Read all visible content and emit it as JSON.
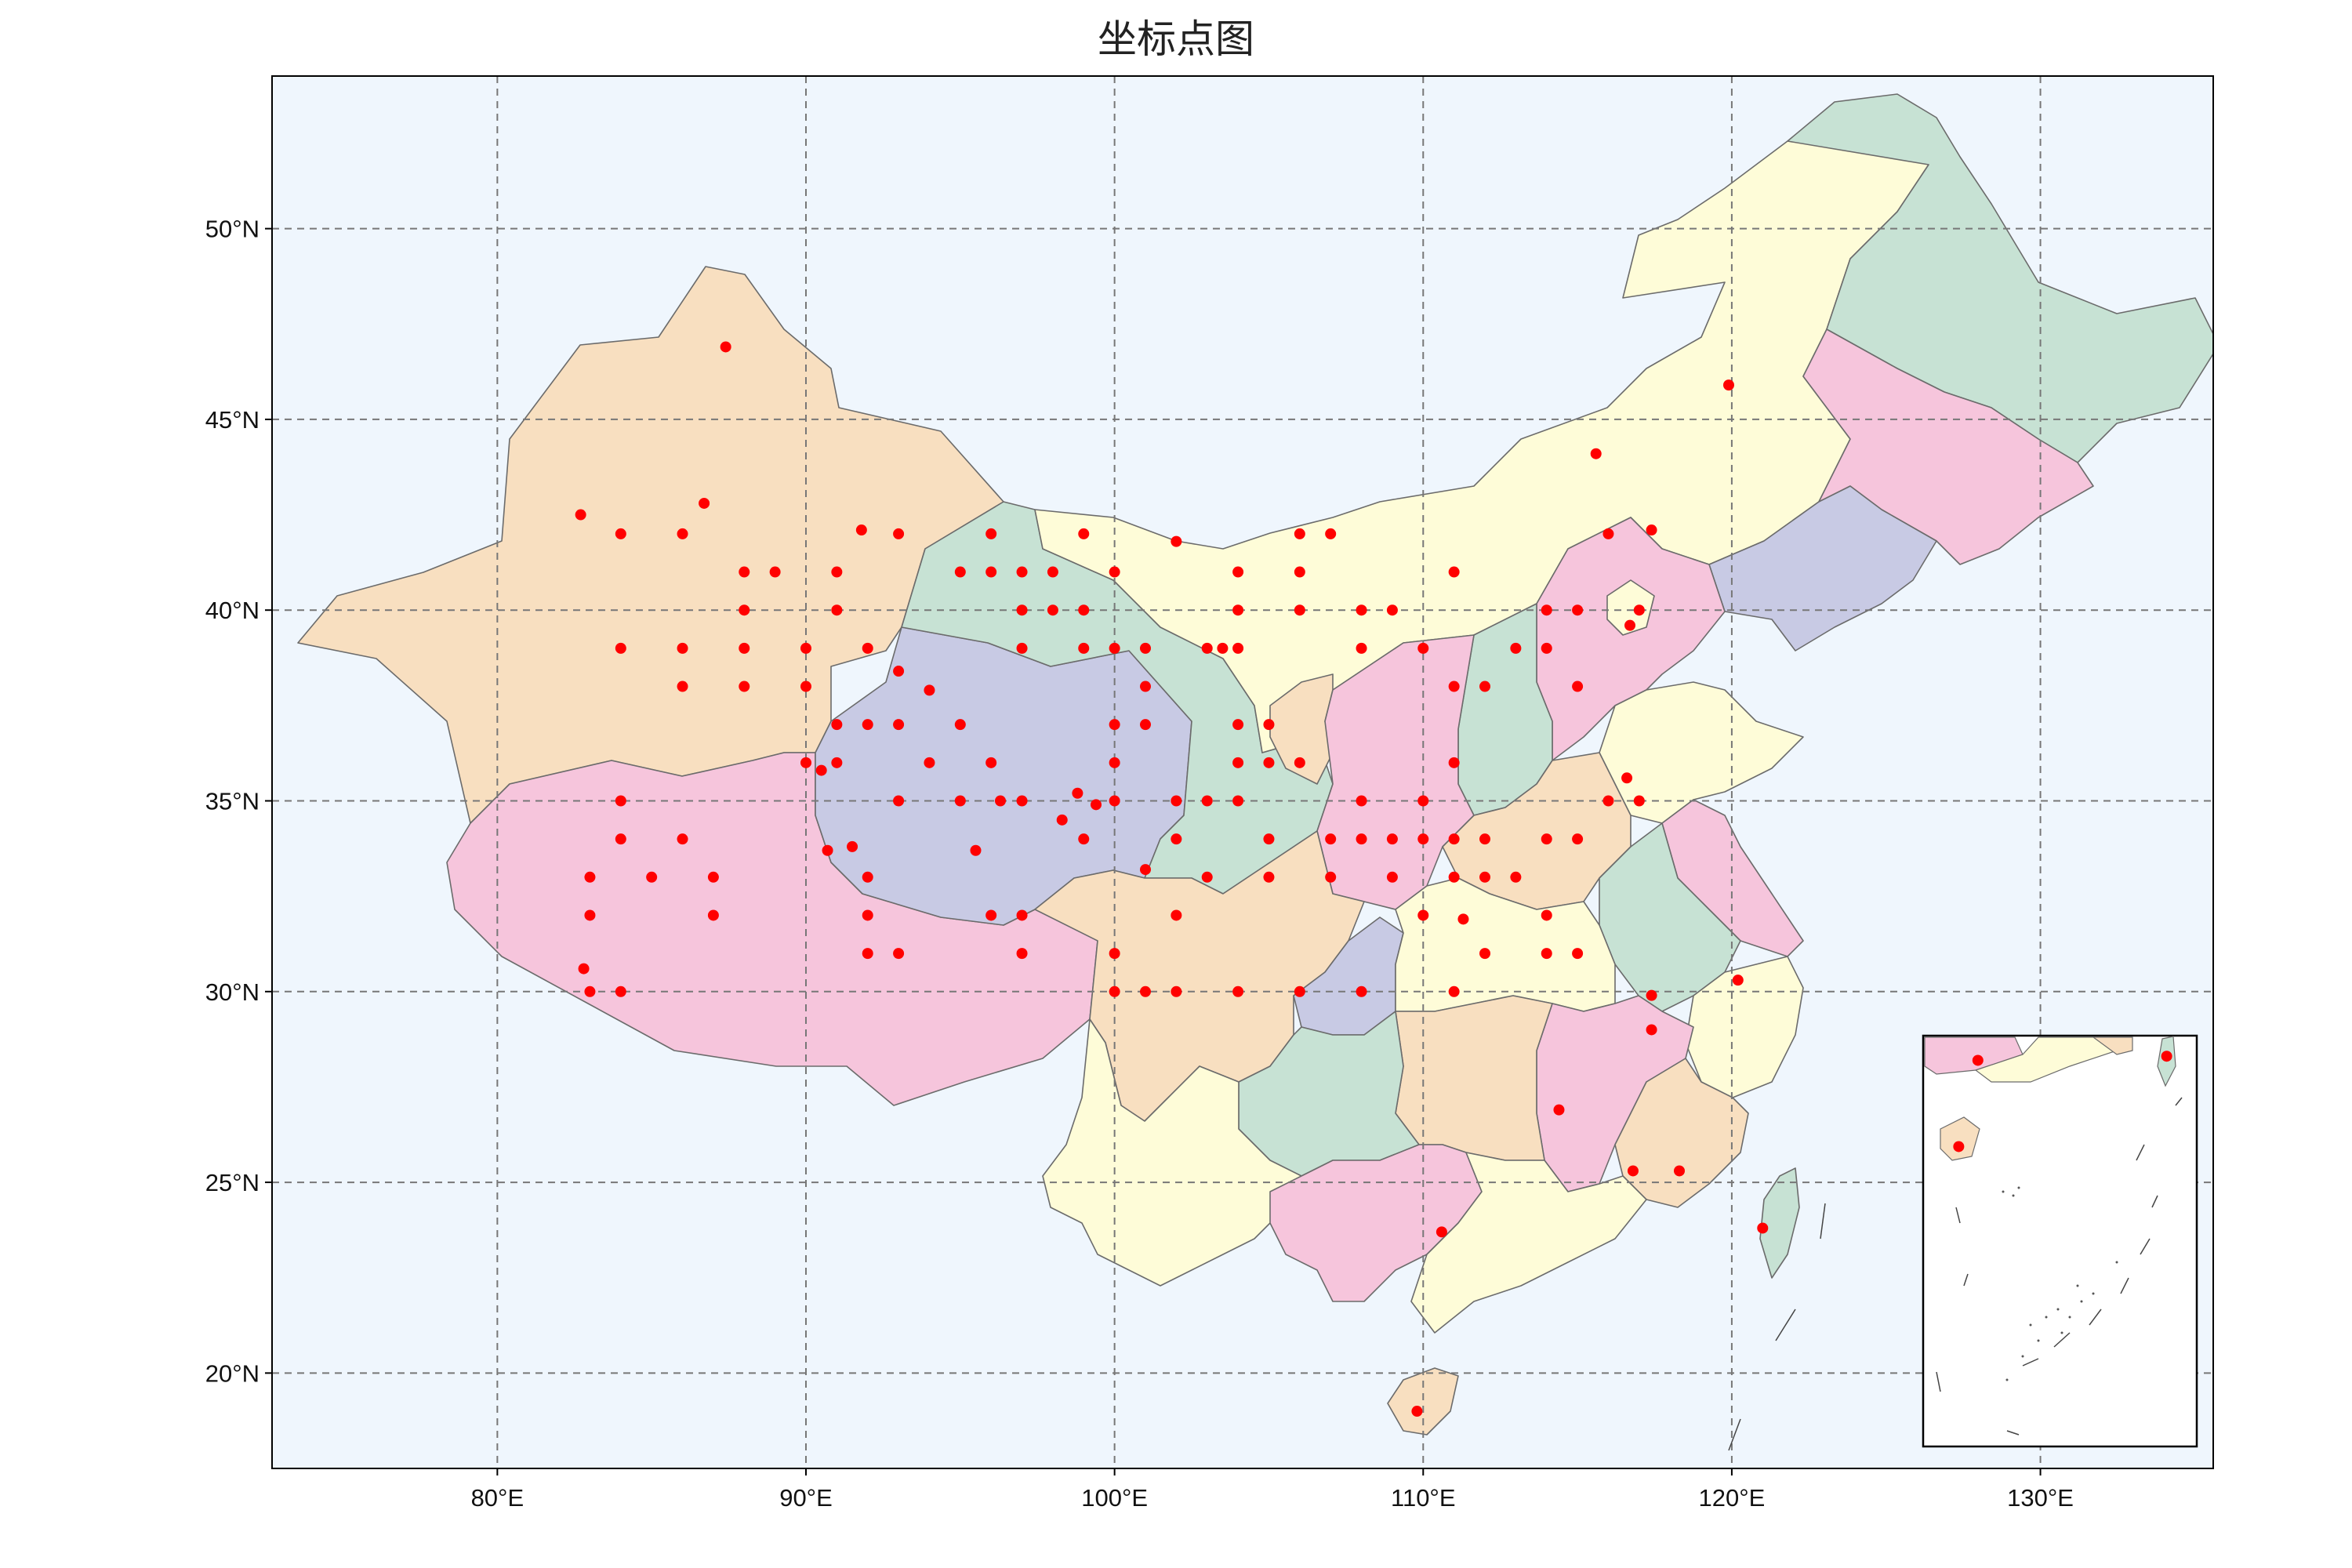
{
  "title": "坐标点图",
  "map": {
    "projection": "equirectangular",
    "lon_range": [
      72.7,
      135.6
    ],
    "lat_range": [
      17.5,
      54.0
    ],
    "grid": "dashed",
    "x_ticks": [
      {
        "v": 80,
        "label": "80°E"
      },
      {
        "v": 90,
        "label": "90°E"
      },
      {
        "v": 100,
        "label": "100°E"
      },
      {
        "v": 110,
        "label": "110°E"
      },
      {
        "v": 120,
        "label": "120°E"
      },
      {
        "v": 130,
        "label": "130°E"
      }
    ],
    "y_ticks": [
      {
        "v": 20,
        "label": "20°N"
      },
      {
        "v": 25,
        "label": "25°N"
      },
      {
        "v": 30,
        "label": "30°N"
      },
      {
        "v": 35,
        "label": "35°N"
      },
      {
        "v": 40,
        "label": "40°N"
      },
      {
        "v": 45,
        "label": "45°N"
      },
      {
        "v": 50,
        "label": "50°N"
      }
    ],
    "colors": {
      "ocean": "#eff6fd",
      "border": "#6b6b6b",
      "points": "#ff0000",
      "peach": "#f8dfc0",
      "pink": "#f6c5dc",
      "green": "#c7e2d4",
      "lavender": "#c8cae4",
      "yellow": "#fefcd8"
    },
    "inset": {
      "description_visible": false
    }
  },
  "points": [
    [
      87.4,
      46.9
    ],
    [
      86.7,
      42.8
    ],
    [
      82.7,
      42.5
    ],
    [
      84.0,
      42.0
    ],
    [
      86.0,
      42.0
    ],
    [
      91.8,
      42.1
    ],
    [
      93.0,
      42.0
    ],
    [
      88.0,
      41.0
    ],
    [
      89.0,
      41.0
    ],
    [
      91.0,
      41.0
    ],
    [
      88.0,
      40.0
    ],
    [
      91.0,
      40.0
    ],
    [
      84.0,
      39.0
    ],
    [
      86.0,
      39.0
    ],
    [
      88.0,
      39.0
    ],
    [
      90.0,
      39.0
    ],
    [
      86.0,
      38.0
    ],
    [
      88.0,
      38.0
    ],
    [
      90.0,
      38.0
    ],
    [
      92.0,
      39.0
    ],
    [
      93.0,
      38.4
    ],
    [
      94.0,
      37.9
    ],
    [
      92.0,
      37.0
    ],
    [
      93.0,
      37.0
    ],
    [
      95.0,
      37.0
    ],
    [
      91.0,
      37.0
    ],
    [
      90.0,
      36.0
    ],
    [
      91.0,
      36.0
    ],
    [
      90.5,
      35.8
    ],
    [
      94.0,
      36.0
    ],
    [
      96.0,
      36.0
    ],
    [
      84.0,
      35.0
    ],
    [
      84.0,
      34.0
    ],
    [
      86.0,
      34.0
    ],
    [
      93.0,
      35.0
    ],
    [
      95.0,
      35.0
    ],
    [
      96.3,
      35.0
    ],
    [
      97.0,
      35.0
    ],
    [
      98.8,
      35.2
    ],
    [
      99.4,
      34.9
    ],
    [
      100.0,
      35.0
    ],
    [
      98.3,
      34.5
    ],
    [
      99.0,
      34.0
    ],
    [
      91.5,
      33.8
    ],
    [
      90.7,
      33.7
    ],
    [
      95.5,
      33.7
    ],
    [
      83.0,
      33.0
    ],
    [
      85.0,
      33.0
    ],
    [
      87.0,
      33.0
    ],
    [
      92.0,
      33.0
    ],
    [
      83.0,
      32.0
    ],
    [
      87.0,
      32.0
    ],
    [
      92.0,
      32.0
    ],
    [
      96.0,
      32.0
    ],
    [
      97.0,
      32.0
    ],
    [
      82.8,
      30.6
    ],
    [
      83.0,
      30.0
    ],
    [
      84.0,
      30.0
    ],
    [
      92.0,
      31.0
    ],
    [
      93.0,
      31.0
    ],
    [
      97.0,
      31.0
    ],
    [
      96.0,
      42.0
    ],
    [
      95.0,
      41.0
    ],
    [
      96.0,
      41.0
    ],
    [
      97.0,
      41.0
    ],
    [
      98.0,
      41.0
    ],
    [
      99.0,
      42.0
    ],
    [
      100.0,
      41.0
    ],
    [
      97.0,
      40.0
    ],
    [
      98.0,
      40.0
    ],
    [
      99.0,
      40.0
    ],
    [
      97.0,
      39.0
    ],
    [
      99.0,
      39.0
    ],
    [
      100.0,
      39.0
    ],
    [
      101.0,
      39.0
    ],
    [
      101.0,
      38.0
    ],
    [
      100.0,
      37.0
    ],
    [
      101.0,
      37.0
    ],
    [
      100.0,
      36.0
    ],
    [
      102.0,
      41.8
    ],
    [
      103.0,
      39.0
    ],
    [
      104.0,
      41.0
    ],
    [
      104.0,
      40.0
    ],
    [
      104.0,
      39.0
    ],
    [
      103.5,
      39.0
    ],
    [
      104.0,
      37.0
    ],
    [
      105.0,
      37.0
    ],
    [
      104.0,
      36.0
    ],
    [
      105.0,
      36.0
    ],
    [
      106.0,
      36.0
    ],
    [
      102.0,
      35.0
    ],
    [
      103.0,
      35.0
    ],
    [
      104.0,
      35.0
    ],
    [
      102.0,
      34.0
    ],
    [
      105.0,
      34.0
    ],
    [
      103.0,
      33.0
    ],
    [
      105.0,
      33.0
    ],
    [
      101.0,
      33.2
    ],
    [
      102.0,
      32.0
    ],
    [
      100.0,
      31.0
    ],
    [
      100.0,
      30.0
    ],
    [
      101.0,
      30.0
    ],
    [
      102.0,
      30.0
    ],
    [
      104.0,
      30.0
    ],
    [
      106.0,
      30.0
    ],
    [
      108.0,
      30.0
    ],
    [
      106.0,
      42.0
    ],
    [
      107.0,
      42.0
    ],
    [
      106.0,
      41.0
    ],
    [
      108.0,
      40.0
    ],
    [
      106.0,
      40.0
    ],
    [
      109.0,
      40.0
    ],
    [
      108.0,
      39.0
    ],
    [
      107.0,
      34.0
    ],
    [
      109.0,
      34.0
    ],
    [
      108.0,
      35.0
    ],
    [
      108.0,
      34.0
    ],
    [
      107.0,
      33.0
    ],
    [
      109.0,
      33.0
    ],
    [
      110.0,
      39.0
    ],
    [
      110.0,
      35.0
    ],
    [
      110.0,
      34.0
    ],
    [
      111.0,
      36.0
    ],
    [
      111.0,
      38.0
    ],
    [
      112.0,
      38.0
    ],
    [
      111.0,
      41.0
    ],
    [
      111.0,
      34.0
    ],
    [
      112.0,
      34.0
    ],
    [
      111.0,
      33.0
    ],
    [
      112.0,
      33.0
    ],
    [
      113.0,
      33.0
    ],
    [
      114.0,
      34.0
    ],
    [
      115.0,
      34.0
    ],
    [
      110.0,
      32.0
    ],
    [
      111.3,
      31.9
    ],
    [
      112.0,
      31.0
    ],
    [
      114.0,
      31.0
    ],
    [
      115.0,
      31.0
    ],
    [
      114.0,
      32.0
    ],
    [
      111.0,
      30.0
    ],
    [
      113.0,
      39.0
    ],
    [
      114.0,
      40.0
    ],
    [
      115.0,
      40.0
    ],
    [
      114.0,
      39.0
    ],
    [
      115.0,
      38.0
    ],
    [
      116.0,
      42.0
    ],
    [
      117.4,
      42.1
    ],
    [
      116.7,
      39.6
    ],
    [
      117.0,
      40.0
    ],
    [
      116.0,
      35.0
    ],
    [
      116.6,
      35.6
    ],
    [
      117.0,
      35.0
    ],
    [
      115.6,
      44.1
    ],
    [
      119.9,
      45.9
    ],
    [
      117.4,
      29.9
    ],
    [
      117.4,
      29.0
    ],
    [
      120.2,
      30.3
    ],
    [
      114.4,
      26.9
    ],
    [
      116.8,
      25.3
    ],
    [
      118.3,
      25.3
    ],
    [
      110.6,
      23.7
    ],
    [
      121.0,
      23.8
    ],
    [
      109.8,
      19.0
    ]
  ],
  "inset_points": [
    [
      0.2,
      0.06
    ],
    [
      0.89,
      0.05
    ],
    [
      0.13,
      0.27
    ]
  ]
}
